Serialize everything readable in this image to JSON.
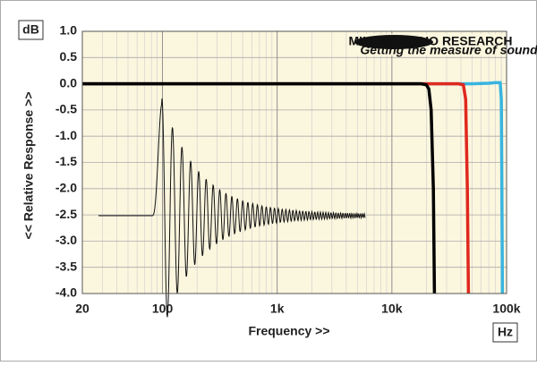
{
  "chart_data": {
    "type": "line",
    "y_unit": "dB",
    "x_unit": "Hz",
    "xlabel": "Frequency >>",
    "ylabel": "<< Relative Response >>",
    "logo": {
      "name": "MILLER AUDIO RESEARCH",
      "tagline": "Getting the measure of sound quality"
    },
    "xscale": "log",
    "xlim": [
      20,
      100000
    ],
    "xticks": [
      20,
      100,
      {
        "value": 1000,
        "label": "1k"
      },
      {
        "value": 10000,
        "label": "10k"
      },
      {
        "value": 100000,
        "label": "100k"
      }
    ],
    "ylim": [
      -4.0,
      1.0
    ],
    "yticks": [
      {
        "value": 1.0,
        "label": "1.0"
      },
      0.5,
      {
        "value": 0.0,
        "label": "0.0"
      },
      -0.5,
      {
        "value": -1.0,
        "label": "-1.0"
      },
      -1.5,
      {
        "value": -2.0,
        "label": "-2.0"
      },
      -2.5,
      {
        "value": -3.0,
        "label": "-3.0"
      },
      -3.5,
      {
        "value": -4.0,
        "label": "-4.0"
      }
    ],
    "grid": true,
    "series": [
      {
        "color": "#38b4e0",
        "x": [
          20,
          1000,
          10000,
          50000,
          70000,
          80000,
          88000,
          90000,
          91000,
          92000
        ],
        "values": [
          0,
          0,
          0,
          0,
          0.01,
          0.02,
          0.02,
          -0.3,
          -2.0,
          -4.0
        ]
      },
      {
        "color": "#e0281e",
        "x": [
          20,
          1000,
          10000,
          38000,
          42000,
          44000,
          45500,
          46500
        ],
        "values": [
          0,
          0,
          0,
          0,
          -0.02,
          -0.3,
          -2.0,
          -4.0
        ]
      },
      {
        "color": "#000000",
        "x": [
          20,
          1000,
          10000,
          18000,
          20000,
          21000,
          22000,
          23000,
          23500
        ],
        "values": [
          0,
          0,
          0,
          0,
          -0.02,
          -0.1,
          -0.5,
          -2.0,
          -4.0
        ]
      }
    ]
  }
}
